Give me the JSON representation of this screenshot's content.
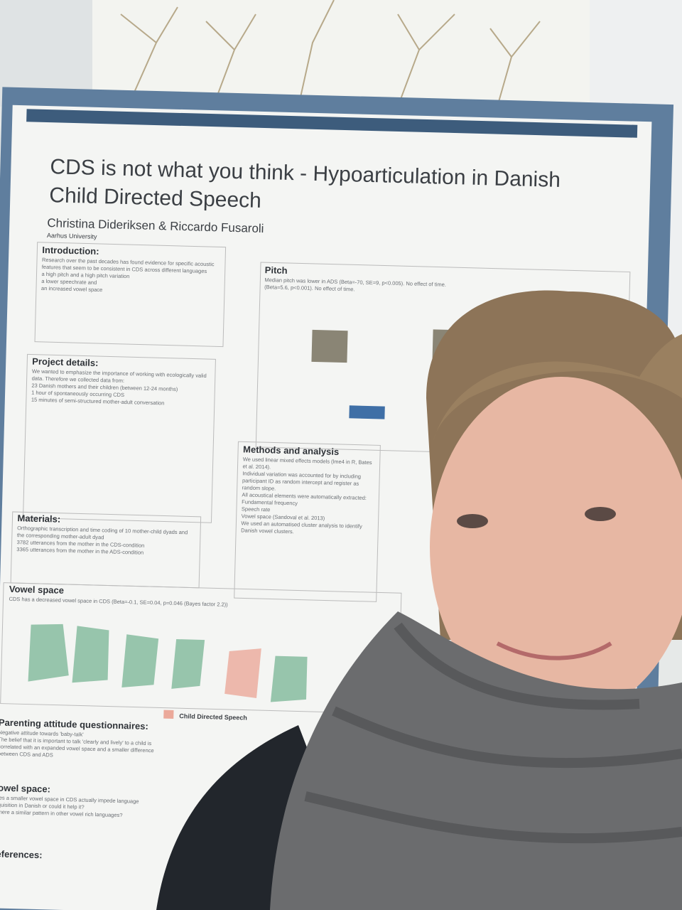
{
  "poster": {
    "title": [
      "CDS is not what you think - Hypoarticulation in Danish",
      "Child Directed Speech"
    ],
    "authors": "Christina Dideriksen & Riccardo Fusaroli",
    "affiliation": "Aarhus University",
    "sections": [
      {
        "heading": "Introduction:",
        "lines": [
          "Research over the past decades has found evidence for specific acoustic",
          "features that seem to be consistent in CDS across different languages",
          "a high pitch and a high pitch variation",
          "a lower speechrate and",
          "an increased vowel space"
        ]
      },
      {
        "heading": "Project details:",
        "lines": [
          "We wanted to emphasize the importance of working with ecologically valid",
          "data. Therefore we collected data from:",
          "23 Danish mothers and their children (between 12-24 months)",
          "1 hour of spontaneously occurring CDS",
          "15 minutes of semi-structured mother-adult conversation"
        ]
      },
      {
        "heading": "Materials:",
        "lines": [
          "Orthographic transcription and time coding of 10 mother-child dyads and",
          "the corresponding mother-adult dyad",
          "3782 utterances from the mother in the CDS-condition",
          "3365 utterances from the mother in the ADS-condition"
        ]
      },
      {
        "heading": "Vowel space",
        "lines": [
          "CDS has a decreased vowel space in CDS (Beta=-0.1, SE=0.04, p=0.046 (Bayes factor 2.2))"
        ]
      },
      {
        "heading": "Pitch",
        "lines": [
          "Median pitch was lower in ADS (Beta=-70, SE=9, p<0.005). No effect of time.",
          "(Beta=5.6, p<0.001). No effect of time."
        ]
      },
      {
        "heading": "Methods and analysis",
        "lines": [
          "We used linear mixed effects models (lme4 in R, Bates",
          "et al. 2014).",
          "Individual variation was accounted for by including",
          "participant ID as random intercept and register as",
          "random slope.",
          "All acoustical elements were automatically extracted:",
          "Fundamental frequency",
          "Speech rate",
          "Vowel space (Sandoval et al. 2013)",
          "We used an automatised cluster analysis to identify",
          "Danish vowel clusters."
        ]
      },
      {
        "heading": "Parenting attitude questionnaires:",
        "lines": [
          "Negative attitude towards 'baby-talk'",
          "The belief that it is important to talk 'clearly and lively' to a child is",
          "correlated with an expanded vowel space and a smaller difference",
          "between CDS and ADS"
        ]
      },
      {
        "heading": "Vowel space:",
        "lines": [
          "Does a smaller vowel space in CDS actually impede language",
          "acquisition in Danish or could it help it?",
          "Is there a similar pattern in other vowel rich languages?"
        ]
      },
      {
        "heading": "References:",
        "lines": []
      }
    ],
    "legend": "Child Directed Speech"
  }
}
